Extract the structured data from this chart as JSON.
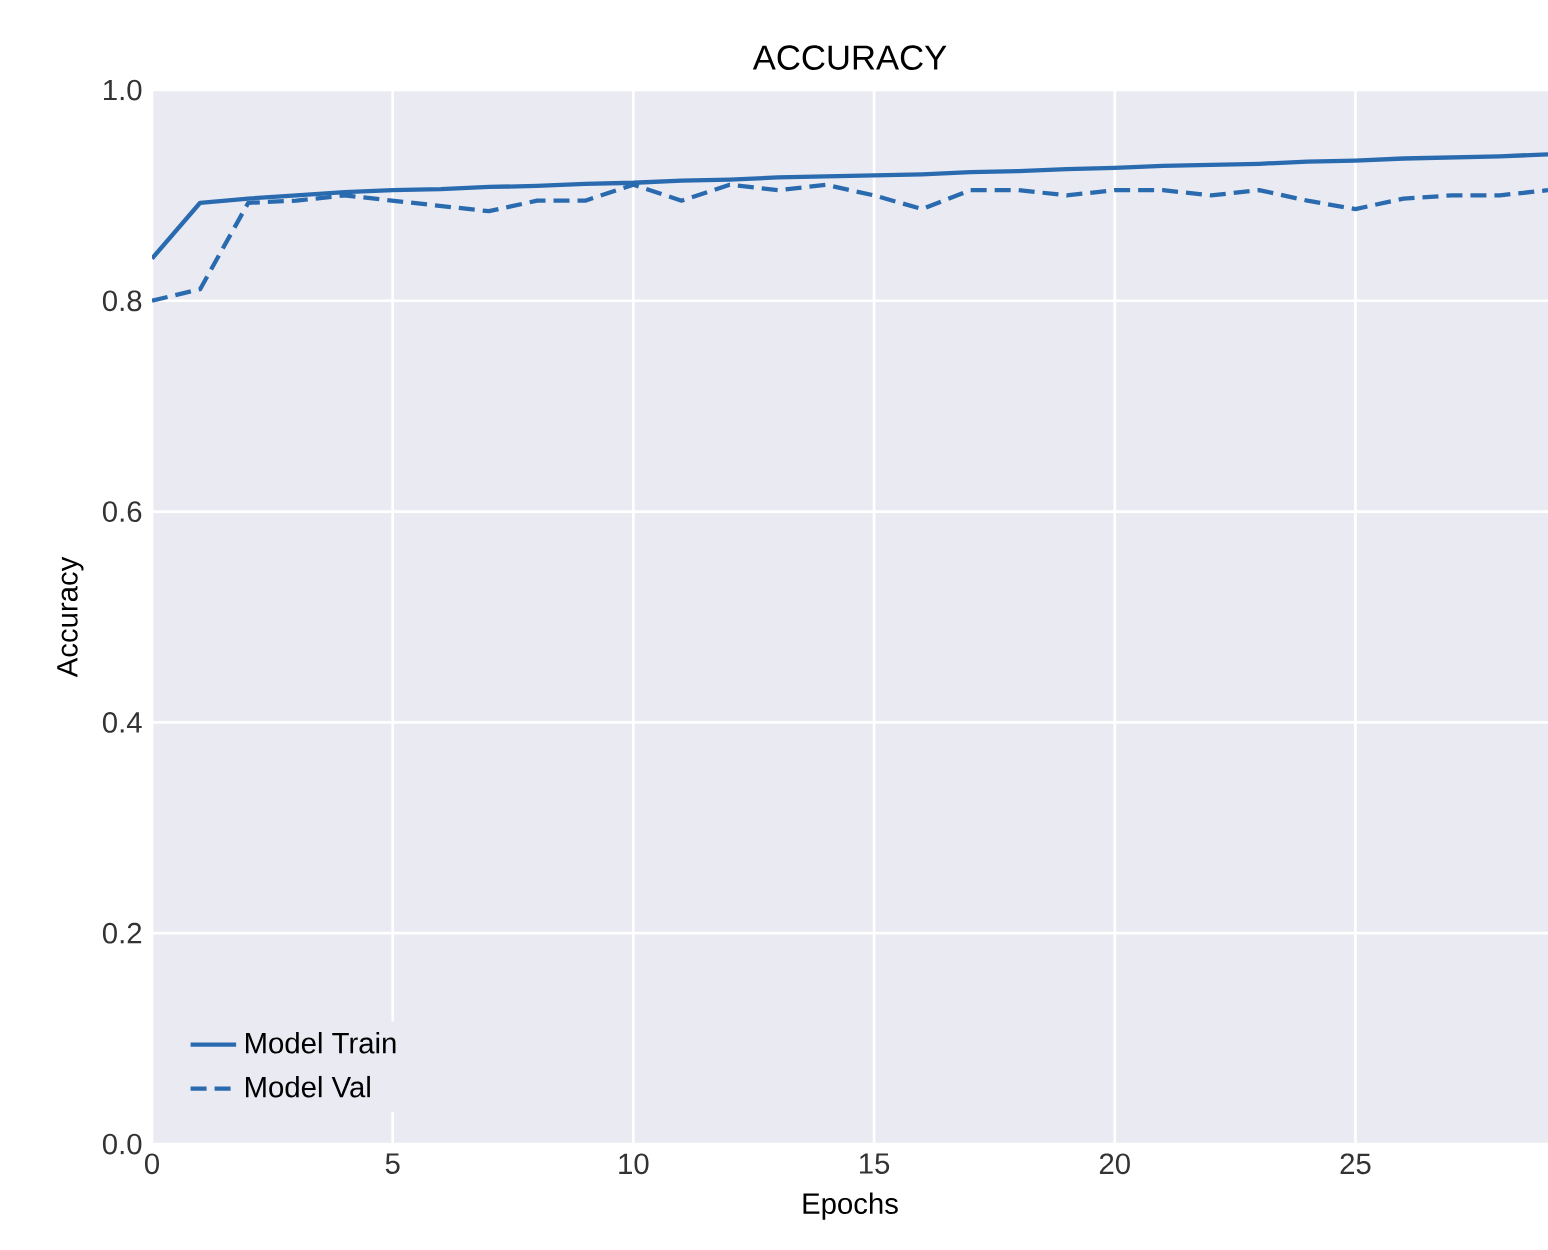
{
  "chart_data": {
    "type": "line",
    "title": "ACCURACY",
    "xlabel": "Epochs",
    "ylabel": "Accuracy",
    "x": [
      0,
      1,
      2,
      3,
      4,
      5,
      6,
      7,
      8,
      9,
      10,
      11,
      12,
      13,
      14,
      15,
      16,
      17,
      18,
      19,
      20,
      21,
      22,
      23,
      24,
      25,
      26,
      27,
      28,
      29
    ],
    "series": [
      {
        "name": "Model Train",
        "color": "#2a6bb0",
        "line_style": "solid",
        "values": [
          0.84,
          0.893,
          0.897,
          0.9,
          0.903,
          0.905,
          0.906,
          0.908,
          0.909,
          0.911,
          0.912,
          0.914,
          0.915,
          0.917,
          0.918,
          0.919,
          0.92,
          0.922,
          0.923,
          0.925,
          0.926,
          0.928,
          0.929,
          0.93,
          0.932,
          0.933,
          0.935,
          0.936,
          0.937,
          0.939
        ]
      },
      {
        "name": "Model Val",
        "color": "#2a6bb0",
        "line_style": "dashed",
        "values": [
          0.8,
          0.811,
          0.893,
          0.895,
          0.9,
          0.895,
          0.89,
          0.885,
          0.895,
          0.895,
          0.91,
          0.895,
          0.91,
          0.905,
          0.91,
          0.9,
          0.887,
          0.905,
          0.905,
          0.9,
          0.905,
          0.905,
          0.9,
          0.905,
          0.895,
          0.887,
          0.897,
          0.9,
          0.9,
          0.905
        ]
      }
    ],
    "xlim": [
      0,
      29
    ],
    "ylim": [
      0,
      1
    ],
    "xticks": [
      0,
      5,
      10,
      15,
      20,
      25
    ],
    "yticks": [
      {
        "value": 0,
        "label": "0.0"
      },
      {
        "value": 0.2,
        "label": "0.2"
      },
      {
        "value": 0.4,
        "label": "0.4"
      },
      {
        "value": 0.6,
        "label": "0.6"
      },
      {
        "value": 0.8,
        "label": "0.8"
      },
      {
        "value": 1,
        "label": "1.0"
      }
    ],
    "grid": true,
    "legend": "bottom left"
  }
}
